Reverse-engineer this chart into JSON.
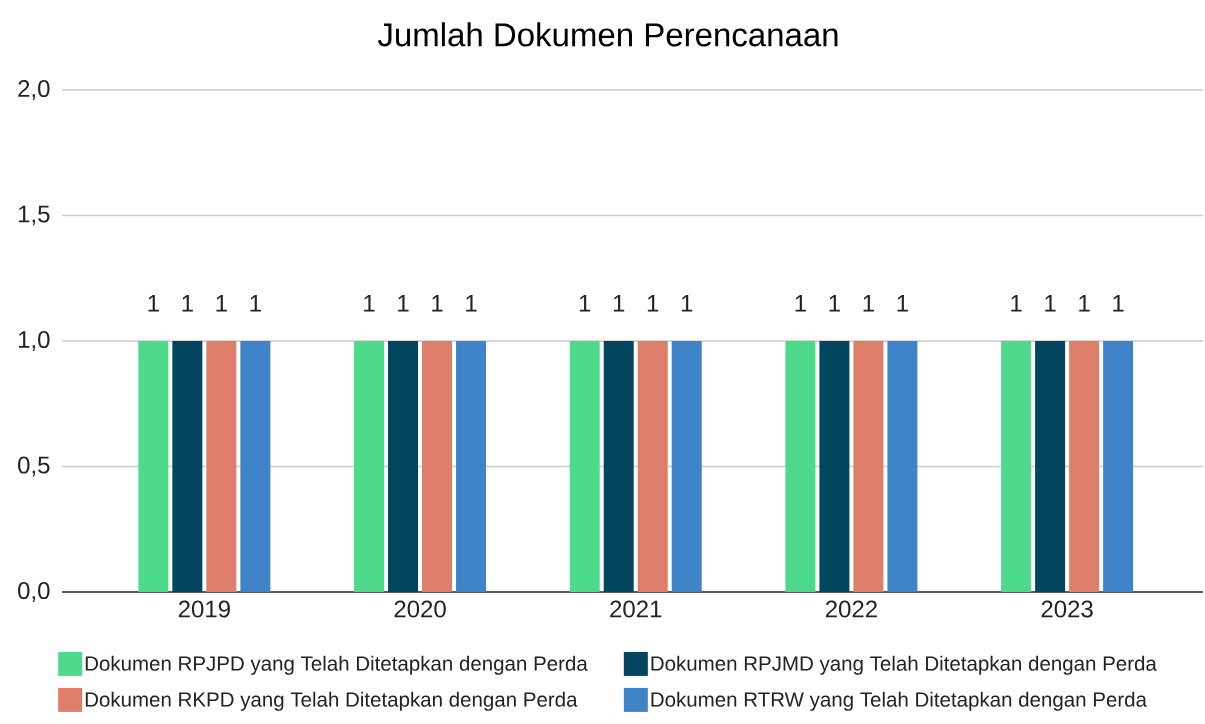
{
  "chart_data": {
    "type": "bar",
    "title": "Jumlah Dokumen Perencanaan",
    "categories": [
      "2019",
      "2020",
      "2021",
      "2022",
      "2023"
    ],
    "series": [
      {
        "name": "Dokumen RPJPD yang Telah Ditetapkan dengan Perda",
        "color": "#4ddb8b",
        "values": [
          1,
          1,
          1,
          1,
          1
        ]
      },
      {
        "name": "Dokumen RPJMD yang Telah Ditetapkan dengan Perda",
        "color": "#02455f",
        "values": [
          1,
          1,
          1,
          1,
          1
        ]
      },
      {
        "name": "Dokumen RKPD yang Telah Ditetapkan dengan Perda",
        "color": "#df7d6b",
        "values": [
          1,
          1,
          1,
          1,
          1
        ]
      },
      {
        "name": "Dokumen RTRW yang Telah Ditetapkan dengan Perda",
        "color": "#3f84c8",
        "values": [
          1,
          1,
          1,
          1,
          1
        ]
      }
    ],
    "ylim": [
      0,
      2
    ],
    "yticks": [
      {
        "value": 0,
        "label": "0,0"
      },
      {
        "value": 0.5,
        "label": "0,5"
      },
      {
        "value": 1,
        "label": "1,0"
      },
      {
        "value": 1.5,
        "label": "1,5"
      },
      {
        "value": 2,
        "label": "2,0"
      }
    ],
    "grid": "y",
    "legend": "bottom",
    "data_labels": true
  }
}
